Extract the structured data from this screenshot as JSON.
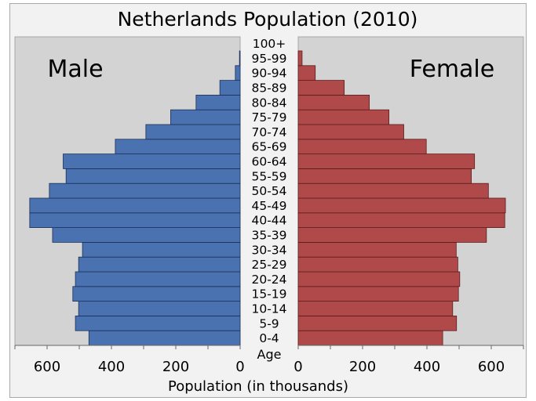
{
  "chart_data": {
    "type": "bar",
    "orientation": "horizontal-pyramid",
    "title": "Netherlands Population (2010)",
    "xlabel": "Population (in thousands)",
    "category_label": "Age",
    "categories": [
      "0-4",
      "5-9",
      "10-14",
      "15-19",
      "20-24",
      "25-29",
      "30-34",
      "35-39",
      "40-44",
      "45-49",
      "50-54",
      "55-59",
      "60-64",
      "65-69",
      "70-74",
      "75-79",
      "80-84",
      "85-89",
      "90-94",
      "95-99",
      "100+"
    ],
    "xlim": [
      0,
      700
    ],
    "xticks": [
      0,
      200,
      400,
      600
    ],
    "grid": false,
    "series": [
      {
        "name": "Male",
        "color": "#4a72b0",
        "side": "left",
        "values": [
          470,
          512,
          502,
          520,
          512,
          502,
          490,
          583,
          654,
          654,
          593,
          541,
          550,
          388,
          293,
          216,
          137,
          63,
          15,
          2,
          0
        ]
      },
      {
        "name": "Female",
        "color": "#b04a4a",
        "side": "right",
        "values": [
          449,
          492,
          480,
          498,
          502,
          496,
          491,
          585,
          642,
          644,
          591,
          538,
          548,
          398,
          328,
          282,
          221,
          143,
          53,
          12,
          0
        ]
      }
    ],
    "panel_color": "#d3d3d3",
    "background_color": "#f2f2f2"
  }
}
